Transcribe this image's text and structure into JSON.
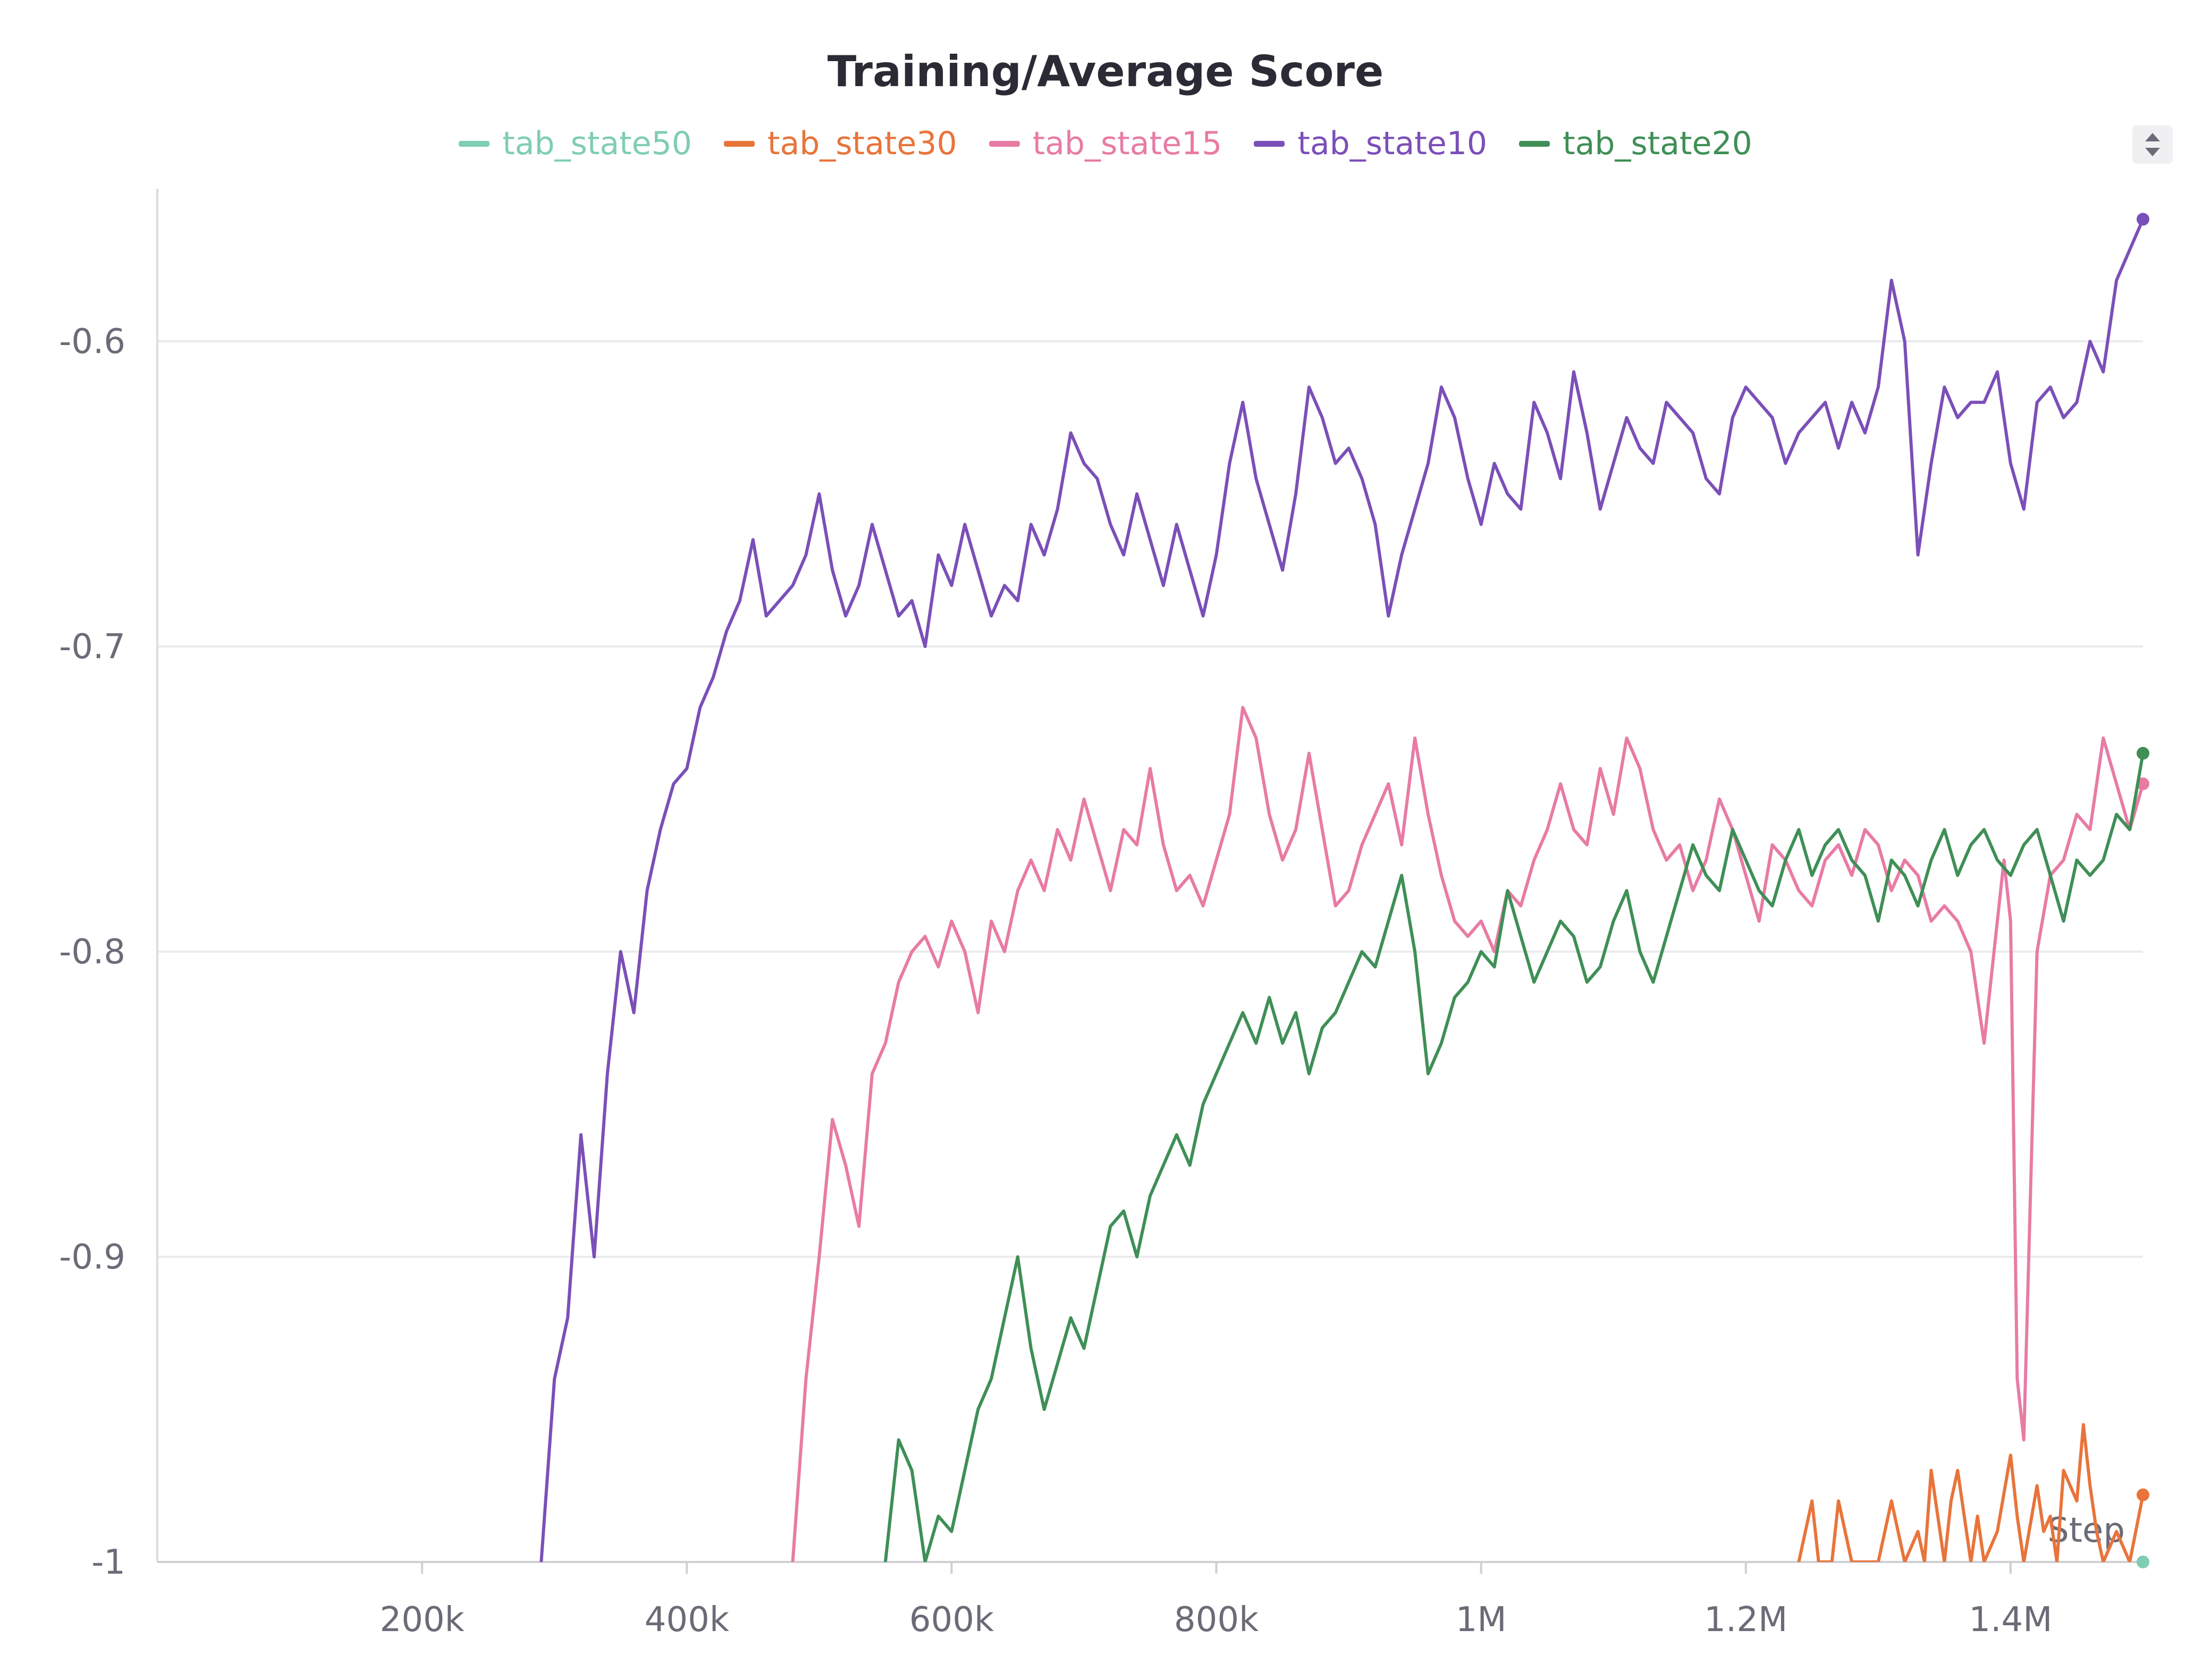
{
  "chart_data": {
    "type": "line",
    "title": "Training/Average Score",
    "xlabel": "Step",
    "ylabel": "",
    "xlim": [
      0,
      1500000
    ],
    "ylim": [
      -1,
      -0.55
    ],
    "legend_position": "top-center",
    "grid": true,
    "x_ticks": [
      {
        "value": 200000,
        "label": "200k"
      },
      {
        "value": 400000,
        "label": "400k"
      },
      {
        "value": 600000,
        "label": "600k"
      },
      {
        "value": 800000,
        "label": "800k"
      },
      {
        "value": 1000000,
        "label": "1M"
      },
      {
        "value": 1200000,
        "label": "1.2M"
      },
      {
        "value": 1400000,
        "label": "1.4M"
      }
    ],
    "y_ticks": [
      {
        "value": -0.6,
        "label": "-0.6"
      },
      {
        "value": -0.7,
        "label": "-0.7"
      },
      {
        "value": -0.8,
        "label": "-0.8"
      },
      {
        "value": -0.9,
        "label": "-0.9"
      },
      {
        "value": -1,
        "label": "-1"
      }
    ],
    "series": [
      {
        "name": "tab_state50",
        "color": "#7fcdb4",
        "x": [
          1500000
        ],
        "y": [
          -1.0
        ]
      },
      {
        "name": "tab_state30",
        "color": "#e8743b",
        "x": [
          1240000,
          1250000,
          1255000,
          1265000,
          1270000,
          1280000,
          1290000,
          1300000,
          1310000,
          1320000,
          1330000,
          1335000,
          1340000,
          1350000,
          1355000,
          1360000,
          1370000,
          1375000,
          1380000,
          1390000,
          1400000,
          1405000,
          1410000,
          1420000,
          1425000,
          1430000,
          1435000,
          1440000,
          1450000,
          1455000,
          1460000,
          1465000,
          1470000,
          1480000,
          1490000,
          1500000
        ],
        "y": [
          -1.0,
          -0.98,
          -1.0,
          -1.0,
          -0.98,
          -1.0,
          -1.0,
          -1.0,
          -0.98,
          -1.0,
          -0.99,
          -1.0,
          -0.97,
          -1.0,
          -0.98,
          -0.97,
          -1.0,
          -0.985,
          -1.0,
          -0.99,
          -0.965,
          -0.985,
          -1.0,
          -0.975,
          -0.99,
          -0.985,
          -1.0,
          -0.97,
          -0.98,
          -0.955,
          -0.975,
          -0.99,
          -1.0,
          -0.99,
          -1.0,
          -0.978
        ]
      },
      {
        "name": "tab_state15",
        "color": "#e87ba4",
        "x": [
          480000,
          490000,
          500000,
          510000,
          520000,
          530000,
          540000,
          550000,
          560000,
          570000,
          580000,
          590000,
          600000,
          610000,
          620000,
          630000,
          640000,
          650000,
          660000,
          670000,
          680000,
          690000,
          700000,
          710000,
          720000,
          730000,
          740000,
          750000,
          760000,
          770000,
          780000,
          790000,
          800000,
          810000,
          820000,
          830000,
          840000,
          850000,
          860000,
          870000,
          880000,
          890000,
          900000,
          910000,
          920000,
          930000,
          940000,
          950000,
          960000,
          970000,
          980000,
          990000,
          1000000,
          1010000,
          1020000,
          1030000,
          1040000,
          1050000,
          1060000,
          1070000,
          1080000,
          1090000,
          1100000,
          1110000,
          1120000,
          1130000,
          1140000,
          1150000,
          1160000,
          1170000,
          1180000,
          1190000,
          1200000,
          1210000,
          1220000,
          1230000,
          1240000,
          1250000,
          1260000,
          1270000,
          1280000,
          1290000,
          1300000,
          1310000,
          1320000,
          1330000,
          1340000,
          1350000,
          1360000,
          1370000,
          1380000,
          1390000,
          1395000,
          1400000,
          1405000,
          1410000,
          1420000,
          1430000,
          1440000,
          1450000,
          1460000,
          1470000,
          1480000,
          1490000,
          1500000
        ],
        "y": [
          -1.0,
          -0.94,
          -0.9,
          -0.855,
          -0.87,
          -0.89,
          -0.84,
          -0.83,
          -0.81,
          -0.8,
          -0.795,
          -0.805,
          -0.79,
          -0.8,
          -0.82,
          -0.79,
          -0.8,
          -0.78,
          -0.77,
          -0.78,
          -0.76,
          -0.77,
          -0.75,
          -0.765,
          -0.78,
          -0.76,
          -0.765,
          -0.74,
          -0.765,
          -0.78,
          -0.775,
          -0.785,
          -0.77,
          -0.755,
          -0.72,
          -0.73,
          -0.755,
          -0.77,
          -0.76,
          -0.735,
          -0.76,
          -0.785,
          -0.78,
          -0.765,
          -0.755,
          -0.745,
          -0.765,
          -0.73,
          -0.755,
          -0.775,
          -0.79,
          -0.795,
          -0.79,
          -0.8,
          -0.78,
          -0.785,
          -0.77,
          -0.76,
          -0.745,
          -0.76,
          -0.765,
          -0.74,
          -0.755,
          -0.73,
          -0.74,
          -0.76,
          -0.77,
          -0.765,
          -0.78,
          -0.77,
          -0.75,
          -0.76,
          -0.775,
          -0.79,
          -0.765,
          -0.77,
          -0.78,
          -0.785,
          -0.77,
          -0.765,
          -0.775,
          -0.76,
          -0.765,
          -0.78,
          -0.77,
          -0.775,
          -0.79,
          -0.785,
          -0.79,
          -0.8,
          -0.83,
          -0.79,
          -0.77,
          -0.79,
          -0.94,
          -0.96,
          -0.8,
          -0.775,
          -0.77,
          -0.755,
          -0.76,
          -0.73,
          -0.745,
          -0.76,
          -0.745
        ]
      },
      {
        "name": "tab_state10",
        "color": "#7b4fb8",
        "x": [
          290000,
          300000,
          310000,
          320000,
          330000,
          340000,
          350000,
          360000,
          370000,
          380000,
          390000,
          400000,
          410000,
          420000,
          430000,
          440000,
          450000,
          460000,
          470000,
          480000,
          490000,
          500000,
          510000,
          520000,
          530000,
          540000,
          550000,
          560000,
          570000,
          580000,
          590000,
          600000,
          610000,
          620000,
          630000,
          640000,
          650000,
          660000,
          670000,
          680000,
          690000,
          700000,
          710000,
          720000,
          730000,
          740000,
          750000,
          760000,
          770000,
          780000,
          790000,
          800000,
          810000,
          820000,
          830000,
          840000,
          850000,
          860000,
          870000,
          880000,
          890000,
          900000,
          910000,
          920000,
          930000,
          940000,
          950000,
          960000,
          970000,
          980000,
          990000,
          1000000,
          1010000,
          1020000,
          1030000,
          1040000,
          1050000,
          1060000,
          1070000,
          1080000,
          1090000,
          1100000,
          1110000,
          1120000,
          1130000,
          1140000,
          1150000,
          1160000,
          1170000,
          1180000,
          1190000,
          1200000,
          1210000,
          1220000,
          1230000,
          1240000,
          1250000,
          1260000,
          1270000,
          1280000,
          1290000,
          1300000,
          1310000,
          1320000,
          1330000,
          1340000,
          1350000,
          1360000,
          1370000,
          1380000,
          1390000,
          1400000,
          1410000,
          1420000,
          1430000,
          1440000,
          1450000,
          1460000,
          1470000,
          1480000,
          1490000,
          1500000
        ],
        "y": [
          -1.0,
          -0.94,
          -0.92,
          -0.86,
          -0.9,
          -0.84,
          -0.8,
          -0.82,
          -0.78,
          -0.76,
          -0.745,
          -0.74,
          -0.72,
          -0.71,
          -0.695,
          -0.685,
          -0.665,
          -0.69,
          -0.685,
          -0.68,
          -0.67,
          -0.65,
          -0.675,
          -0.69,
          -0.68,
          -0.66,
          -0.675,
          -0.69,
          -0.685,
          -0.7,
          -0.67,
          -0.68,
          -0.66,
          -0.675,
          -0.69,
          -0.68,
          -0.685,
          -0.66,
          -0.67,
          -0.655,
          -0.63,
          -0.64,
          -0.645,
          -0.66,
          -0.67,
          -0.65,
          -0.665,
          -0.68,
          -0.66,
          -0.675,
          -0.69,
          -0.67,
          -0.64,
          -0.62,
          -0.645,
          -0.66,
          -0.675,
          -0.65,
          -0.615,
          -0.625,
          -0.64,
          -0.635,
          -0.645,
          -0.66,
          -0.69,
          -0.67,
          -0.655,
          -0.64,
          -0.615,
          -0.625,
          -0.645,
          -0.66,
          -0.64,
          -0.65,
          -0.655,
          -0.62,
          -0.63,
          -0.645,
          -0.61,
          -0.63,
          -0.655,
          -0.64,
          -0.625,
          -0.635,
          -0.64,
          -0.62,
          -0.625,
          -0.63,
          -0.645,
          -0.65,
          -0.625,
          -0.615,
          -0.62,
          -0.625,
          -0.64,
          -0.63,
          -0.625,
          -0.62,
          -0.635,
          -0.62,
          -0.63,
          -0.615,
          -0.58,
          -0.6,
          -0.67,
          -0.64,
          -0.615,
          -0.625,
          -0.62,
          -0.62,
          -0.61,
          -0.64,
          -0.655,
          -0.62,
          -0.615,
          -0.625,
          -0.62,
          -0.6,
          -0.61,
          -0.58,
          -0.57,
          -0.56
        ]
      },
      {
        "name": "tab_state20",
        "color": "#3f8f56",
        "x": [
          550000,
          560000,
          570000,
          580000,
          590000,
          600000,
          610000,
          620000,
          630000,
          640000,
          650000,
          660000,
          670000,
          680000,
          690000,
          700000,
          710000,
          720000,
          730000,
          740000,
          750000,
          760000,
          770000,
          780000,
          790000,
          800000,
          810000,
          820000,
          830000,
          840000,
          850000,
          860000,
          870000,
          880000,
          890000,
          900000,
          910000,
          920000,
          930000,
          940000,
          950000,
          960000,
          970000,
          980000,
          990000,
          1000000,
          1010000,
          1020000,
          1030000,
          1040000,
          1050000,
          1060000,
          1070000,
          1080000,
          1090000,
          1100000,
          1110000,
          1120000,
          1130000,
          1140000,
          1150000,
          1160000,
          1170000,
          1180000,
          1190000,
          1200000,
          1210000,
          1220000,
          1230000,
          1240000,
          1250000,
          1260000,
          1270000,
          1280000,
          1290000,
          1300000,
          1310000,
          1320000,
          1330000,
          1340000,
          1350000,
          1360000,
          1370000,
          1380000,
          1390000,
          1400000,
          1410000,
          1420000,
          1430000,
          1440000,
          1450000,
          1460000,
          1470000,
          1480000,
          1490000,
          1500000
        ],
        "y": [
          -1.0,
          -0.96,
          -0.97,
          -1.0,
          -0.985,
          -0.99,
          -0.97,
          -0.95,
          -0.94,
          -0.92,
          -0.9,
          -0.93,
          -0.95,
          -0.935,
          -0.92,
          -0.93,
          -0.91,
          -0.89,
          -0.885,
          -0.9,
          -0.88,
          -0.87,
          -0.86,
          -0.87,
          -0.85,
          -0.84,
          -0.83,
          -0.82,
          -0.83,
          -0.815,
          -0.83,
          -0.82,
          -0.84,
          -0.825,
          -0.82,
          -0.81,
          -0.8,
          -0.805,
          -0.79,
          -0.775,
          -0.8,
          -0.84,
          -0.83,
          -0.815,
          -0.81,
          -0.8,
          -0.805,
          -0.78,
          -0.795,
          -0.81,
          -0.8,
          -0.79,
          -0.795,
          -0.81,
          -0.805,
          -0.79,
          -0.78,
          -0.8,
          -0.81,
          -0.795,
          -0.78,
          -0.765,
          -0.775,
          -0.78,
          -0.76,
          -0.77,
          -0.78,
          -0.785,
          -0.77,
          -0.76,
          -0.775,
          -0.765,
          -0.76,
          -0.77,
          -0.775,
          -0.79,
          -0.77,
          -0.775,
          -0.785,
          -0.77,
          -0.76,
          -0.775,
          -0.765,
          -0.76,
          -0.77,
          -0.775,
          -0.765,
          -0.76,
          -0.775,
          -0.79,
          -0.77,
          -0.775,
          -0.77,
          -0.755,
          -0.76,
          -0.735
        ]
      }
    ]
  }
}
